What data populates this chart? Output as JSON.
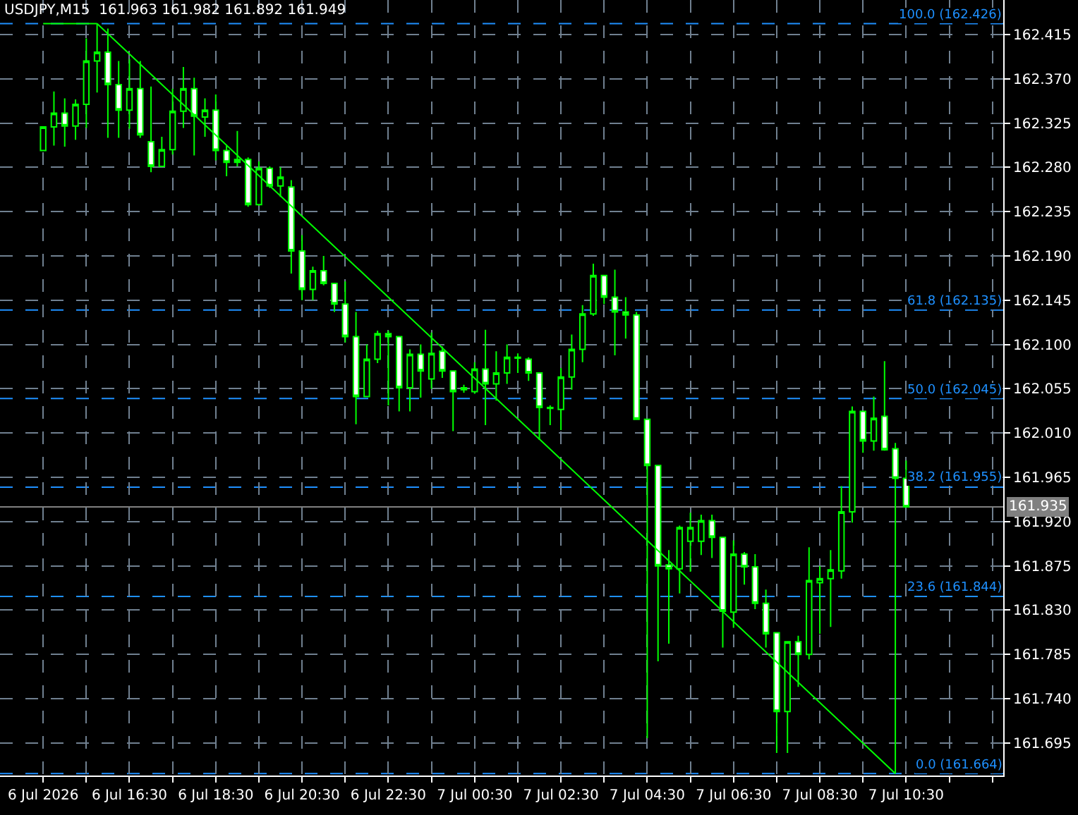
{
  "chart_data": {
    "type": "candlestick",
    "title": "USDJPY,M15  161.963 161.982 161.892 161.949",
    "color": "#00ff00",
    "x": [
      "2026-07-06T14:30",
      "2026-07-06T14:45",
      "2026-07-06T15:00",
      "2026-07-06T15:15",
      "2026-07-06T15:30",
      "2026-07-06T15:45",
      "2026-07-06T16:00",
      "2026-07-06T16:15",
      "2026-07-06T16:30",
      "2026-07-06T16:45",
      "2026-07-06T17:00",
      "2026-07-06T17:15",
      "2026-07-06T17:30",
      "2026-07-06T17:45",
      "2026-07-06T18:00",
      "2026-07-06T18:15",
      "2026-07-06T18:30",
      "2026-07-06T18:45",
      "2026-07-06T19:00",
      "2026-07-06T19:15",
      "2026-07-06T19:30",
      "2026-07-06T19:45",
      "2026-07-06T20:00",
      "2026-07-06T20:15",
      "2026-07-06T20:30",
      "2026-07-06T20:45",
      "2026-07-06T21:00",
      "2026-07-06T21:15",
      "2026-07-06T21:30",
      "2026-07-06T21:45",
      "2026-07-06T22:00",
      "2026-07-06T22:15",
      "2026-07-06T22:30",
      "2026-07-06T22:45",
      "2026-07-06T23:00",
      "2026-07-06T23:15",
      "2026-07-06T23:30",
      "2026-07-06T23:45",
      "2026-07-07T00:00",
      "2026-07-07T00:15",
      "2026-07-07T00:30",
      "2026-07-07T00:45",
      "2026-07-07T01:00",
      "2026-07-07T01:15",
      "2026-07-07T01:30",
      "2026-07-07T01:45",
      "2026-07-07T02:00",
      "2026-07-07T02:15",
      "2026-07-07T02:30",
      "2026-07-07T02:45",
      "2026-07-07T03:00",
      "2026-07-07T03:15",
      "2026-07-07T03:30",
      "2026-07-07T03:45",
      "2026-07-07T04:00",
      "2026-07-07T04:15",
      "2026-07-07T04:30",
      "2026-07-07T04:45",
      "2026-07-07T05:00",
      "2026-07-07T05:15",
      "2026-07-07T05:30",
      "2026-07-07T05:45",
      "2026-07-07T06:00",
      "2026-07-07T06:15",
      "2026-07-07T06:30",
      "2026-07-07T06:45",
      "2026-07-07T07:00",
      "2026-07-07T07:15",
      "2026-07-07T07:30",
      "2026-07-07T07:45",
      "2026-07-07T08:00",
      "2026-07-07T08:15",
      "2026-07-07T08:30",
      "2026-07-07T08:45",
      "2026-07-07T09:00",
      "2026-07-07T09:15",
      "2026-07-07T09:30",
      "2026-07-07T09:45",
      "2026-07-07T10:00",
      "2026-07-07T10:15",
      "2026-07-07T10:30"
    ],
    "ohlc": [
      [
        162.297,
        162.321,
        162.297,
        162.321
      ],
      [
        162.321,
        162.357,
        162.302,
        162.335
      ],
      [
        162.335,
        162.35,
        162.301,
        162.322
      ],
      [
        162.322,
        162.349,
        162.308,
        162.344
      ],
      [
        162.344,
        162.411,
        162.32,
        162.388
      ],
      [
        162.388,
        162.426,
        162.356,
        162.397
      ],
      [
        162.397,
        162.421,
        162.31,
        162.364
      ],
      [
        162.364,
        162.388,
        162.31,
        162.338
      ],
      [
        162.338,
        162.39,
        162.319,
        162.36
      ],
      [
        162.36,
        162.388,
        162.31,
        162.313
      ],
      [
        162.306,
        162.362,
        162.275,
        162.281
      ],
      [
        162.281,
        162.311,
        162.281,
        162.298
      ],
      [
        162.298,
        162.36,
        162.293,
        162.337
      ],
      [
        162.337,
        162.382,
        162.32,
        162.36
      ],
      [
        162.36,
        162.371,
        162.292,
        162.332
      ],
      [
        162.331,
        162.35,
        162.311,
        162.338
      ],
      [
        162.338,
        162.354,
        162.287,
        162.297
      ],
      [
        162.297,
        162.303,
        162.271,
        162.285
      ],
      [
        162.285,
        162.317,
        162.281,
        162.288
      ],
      [
        162.288,
        162.29,
        162.24,
        162.242
      ],
      [
        162.242,
        162.286,
        162.241,
        162.279
      ],
      [
        162.279,
        162.281,
        162.259,
        162.261
      ],
      [
        162.261,
        162.28,
        162.25,
        162.27
      ],
      [
        162.26,
        162.267,
        162.172,
        162.195
      ],
      [
        162.195,
        162.211,
        162.145,
        162.156
      ],
      [
        162.156,
        162.179,
        162.145,
        162.175
      ],
      [
        162.175,
        162.19,
        162.16,
        162.162
      ],
      [
        162.162,
        162.162,
        162.133,
        162.141
      ],
      [
        162.141,
        162.164,
        162.102,
        162.108
      ],
      [
        162.108,
        162.133,
        162.019,
        162.047
      ],
      [
        162.047,
        162.1,
        162.047,
        162.085
      ],
      [
        162.085,
        162.114,
        162.081,
        162.111
      ],
      [
        162.111,
        162.114,
        162.038,
        162.108
      ],
      [
        162.108,
        162.108,
        162.032,
        162.056
      ],
      [
        162.056,
        162.095,
        162.032,
        162.09
      ],
      [
        162.09,
        162.1,
        162.046,
        162.073
      ],
      [
        162.065,
        162.112,
        162.055,
        162.091
      ],
      [
        162.093,
        162.098,
        162.066,
        162.073
      ],
      [
        162.073,
        162.073,
        162.012,
        162.052
      ],
      [
        162.056,
        162.059,
        162.051,
        162.054
      ],
      [
        162.052,
        162.082,
        162.05,
        162.075
      ],
      [
        162.075,
        162.115,
        162.018,
        162.06
      ],
      [
        162.06,
        162.093,
        162.043,
        162.071
      ],
      [
        162.071,
        162.1,
        162.06,
        162.087
      ],
      [
        162.086,
        162.091,
        162.071,
        162.087
      ],
      [
        162.085,
        162.087,
        162.063,
        162.071
      ],
      [
        162.071,
        162.071,
        162.003,
        162.036
      ],
      [
        162.035,
        162.038,
        162.018,
        162.036
      ],
      [
        162.034,
        162.076,
        162.013,
        162.067
      ],
      [
        162.067,
        162.11,
        162.054,
        162.095
      ],
      [
        162.095,
        162.14,
        162.082,
        162.131
      ],
      [
        162.131,
        162.182,
        162.129,
        162.17
      ],
      [
        162.17,
        162.17,
        162.141,
        162.148
      ],
      [
        162.148,
        162.176,
        162.089,
        162.133
      ],
      [
        162.133,
        162.148,
        162.106,
        162.13
      ],
      [
        162.13,
        162.133,
        162.024,
        162.024
      ],
      [
        162.024,
        162.024,
        161.7,
        161.977
      ],
      [
        161.977,
        161.977,
        161.778,
        161.875
      ],
      [
        161.876,
        161.891,
        161.796,
        161.872
      ],
      [
        161.872,
        161.916,
        161.847,
        161.914
      ],
      [
        161.9,
        161.929,
        161.869,
        161.914
      ],
      [
        161.9,
        161.927,
        161.886,
        161.921
      ],
      [
        161.921,
        161.927,
        161.883,
        161.904
      ],
      [
        161.904,
        161.904,
        161.792,
        161.829
      ],
      [
        161.828,
        161.901,
        161.812,
        161.887
      ],
      [
        161.887,
        161.889,
        161.856,
        161.874
      ],
      [
        161.874,
        161.887,
        161.831,
        161.837
      ],
      [
        161.837,
        161.851,
        161.792,
        161.806
      ],
      [
        161.807,
        161.807,
        161.685,
        161.727
      ],
      [
        161.727,
        161.798,
        161.685,
        161.798
      ],
      [
        161.798,
        161.804,
        161.752,
        161.785
      ],
      [
        161.785,
        161.894,
        161.78,
        161.86
      ],
      [
        161.858,
        161.875,
        161.806,
        161.862
      ],
      [
        161.862,
        161.891,
        161.813,
        161.871
      ],
      [
        161.87,
        161.956,
        161.862,
        161.93
      ],
      [
        161.93,
        162.037,
        161.919,
        162.032
      ],
      [
        162.032,
        162.032,
        161.99,
        162.002
      ],
      [
        162.002,
        162.047,
        161.992,
        162.025
      ],
      [
        162.027,
        162.083,
        161.992,
        161.993
      ],
      [
        161.994,
        162.0,
        161.664,
        161.964
      ],
      [
        161.964,
        161.982,
        161.935,
        161.935
      ]
    ],
    "series": [
      {
        "type": "line",
        "color": "#00ff00",
        "x": [
          "2026-07-06T14:30",
          "2026-07-06T15:45"
        ],
        "values": [
          162.426,
          162.426
        ]
      },
      {
        "type": "line",
        "color": "#00ff00",
        "x": [
          "2026-07-06T15:45",
          "2026-07-07T10:15"
        ],
        "values": [
          162.426,
          161.664
        ]
      }
    ],
    "ref_lines": [
      {
        "axis": "y",
        "value": 162.426,
        "label": "100.0 (162.426)",
        "color": "#1e90ff",
        "line_style": "dashed"
      },
      {
        "axis": "y",
        "value": 162.135,
        "label": "61.8 (162.135)",
        "color": "#1e90ff",
        "line_style": "dashed"
      },
      {
        "axis": "y",
        "value": 162.045,
        "label": "50.0 (162.045)",
        "color": "#1e90ff",
        "line_style": "dashed"
      },
      {
        "axis": "y",
        "value": 161.955,
        "label": "38.2 (161.955)",
        "color": "#1e90ff",
        "line_style": "dashed"
      },
      {
        "axis": "y",
        "value": 161.844,
        "label": "23.6 (161.844)",
        "color": "#1e90ff",
        "line_style": "dashed"
      },
      {
        "axis": "y",
        "value": 161.664,
        "label": "0.0 (161.664)",
        "color": "#1e90ff",
        "line_style": "dashed"
      },
      {
        "axis": "y",
        "value": 161.935,
        "label": "161.935",
        "color": "#808080",
        "line_style": "solid"
      }
    ],
    "xlim": [
      "2026-07-06T13:30",
      "2026-07-07T12:45"
    ],
    "xticks": [
      {
        "value": "2026-07-06T14:30",
        "label": "6 Jul 2026"
      },
      {
        "value": "2026-07-06T15:30",
        "label": null
      },
      {
        "value": "2026-07-06T16:30",
        "label": "6 Jul 16:30"
      },
      {
        "value": "2026-07-06T17:30",
        "label": null
      },
      {
        "value": "2026-07-06T18:30",
        "label": "6 Jul 18:30"
      },
      {
        "value": "2026-07-06T19:30",
        "label": null
      },
      {
        "value": "2026-07-06T20:30",
        "label": "6 Jul 20:30"
      },
      {
        "value": "2026-07-06T21:30",
        "label": null
      },
      {
        "value": "2026-07-06T22:30",
        "label": "6 Jul 22:30"
      },
      {
        "value": "2026-07-06T23:30",
        "label": null
      },
      {
        "value": "2026-07-07T00:30",
        "label": "7 Jul 00:30"
      },
      {
        "value": "2026-07-07T01:30",
        "label": null
      },
      {
        "value": "2026-07-07T02:30",
        "label": "7 Jul 02:30"
      },
      {
        "value": "2026-07-07T03:30",
        "label": null
      },
      {
        "value": "2026-07-07T04:30",
        "label": "7 Jul 04:30"
      },
      {
        "value": "2026-07-07T05:30",
        "label": null
      },
      {
        "value": "2026-07-07T06:30",
        "label": "7 Jul 06:30"
      },
      {
        "value": "2026-07-07T07:30",
        "label": null
      },
      {
        "value": "2026-07-07T08:30",
        "label": "7 Jul 08:30"
      },
      {
        "value": "2026-07-07T09:30",
        "label": null
      },
      {
        "value": "2026-07-07T10:30",
        "label": "7 Jul 10:30"
      },
      {
        "value": "2026-07-07T11:30",
        "label": null
      },
      {
        "value": "2026-07-07T12:30",
        "label": null
      }
    ],
    "ylim": [
      161.662,
      162.45
    ],
    "yticks": [
      161.695,
      {
        "value": 161.74,
        "label": "161.740"
      },
      161.785,
      {
        "value": 161.83,
        "label": "161.830"
      },
      161.875,
      {
        "value": 161.92,
        "label": "161.920"
      },
      161.965,
      {
        "value": 162.01,
        "label": "162.010"
      },
      162.055,
      {
        "value": 162.1,
        "label": "162.100"
      },
      162.145,
      {
        "value": 162.19,
        "label": "162.190"
      },
      162.235,
      {
        "value": 162.28,
        "label": "162.280"
      },
      162.325,
      {
        "value": 162.37,
        "label": "162.370"
      },
      162.415
    ],
    "grid": true
  }
}
